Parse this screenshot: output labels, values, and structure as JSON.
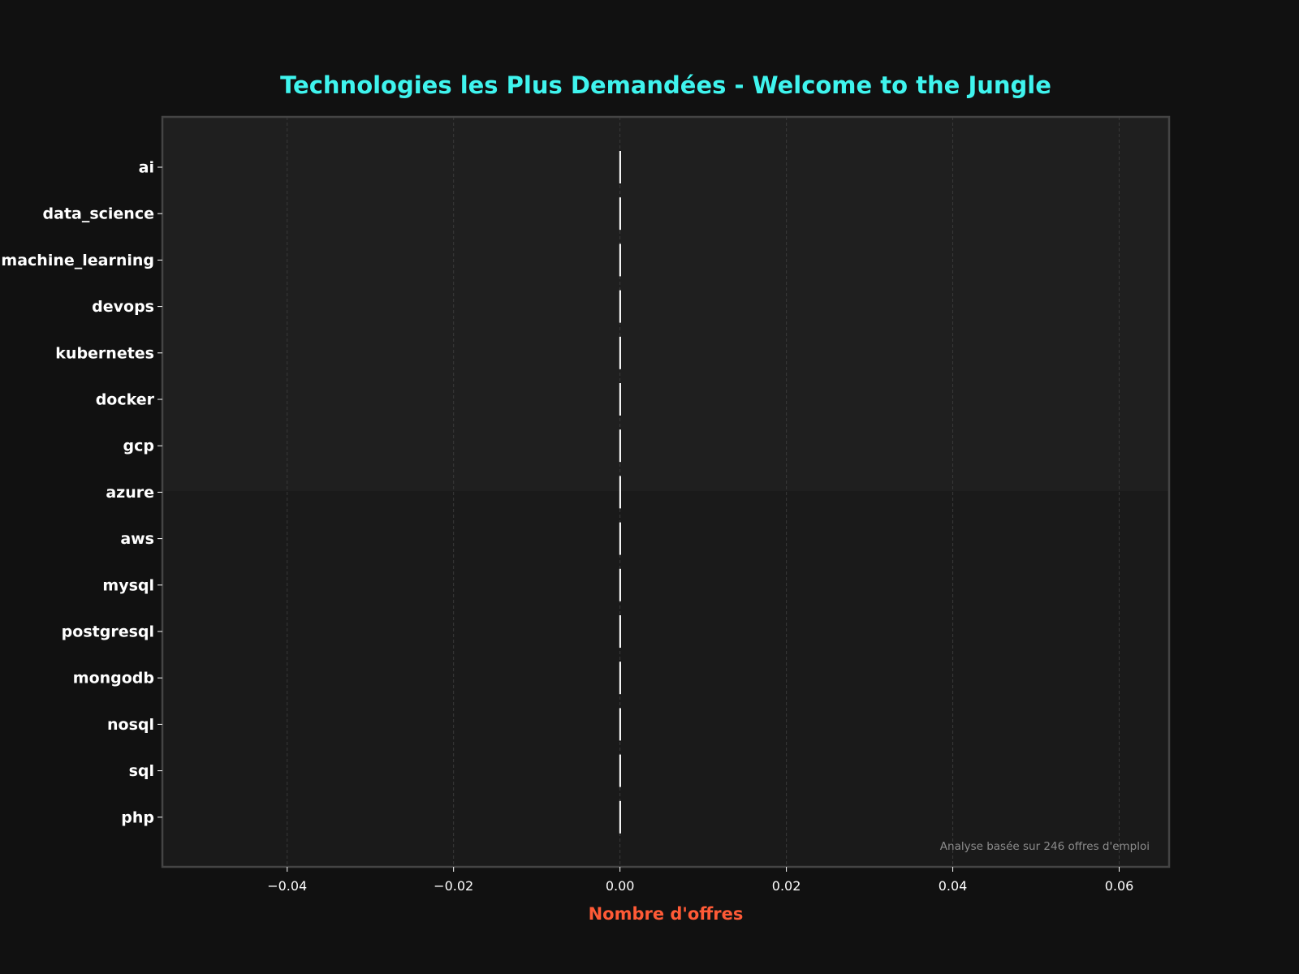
{
  "chart_data": {
    "type": "bar",
    "orientation": "horizontal",
    "title": "Technologies les Plus Demandées - Welcome to the Jungle",
    "xlabel": "Nombre d'offres",
    "ylabel": "",
    "categories": [
      "ai",
      "data_science",
      "machine_learning",
      "devops",
      "kubernetes",
      "docker",
      "gcp",
      "azure",
      "aws",
      "mysql",
      "postgresql",
      "mongodb",
      "nosql",
      "sql",
      "php"
    ],
    "values": [
      0,
      0,
      0,
      0,
      0,
      0,
      0,
      0,
      0,
      0,
      0,
      0,
      0,
      0,
      0
    ],
    "xlim": [
      -0.055,
      0.066
    ],
    "xticks": [
      -0.04,
      -0.02,
      0,
      0.02,
      0.04,
      0.06
    ],
    "xtick_labels": [
      "−0.04",
      "−0.02",
      "0.00",
      "0.02",
      "0.04",
      "0.06"
    ],
    "grid": "vertical dashed",
    "annotation": "Analyse basée sur 246 offres d'emploi"
  },
  "colors": {
    "background": "#111111",
    "plot_area": "#1a1a1a",
    "plot_area_upper": "#1f1f1f",
    "frame": "#444444",
    "title": "#3ff4ee",
    "xlabel": "#ff5a36",
    "tick_text": "#ffffff",
    "annotation": "#8c8c8c",
    "bar": "#ffffff",
    "grid": "#3a3a3a"
  }
}
